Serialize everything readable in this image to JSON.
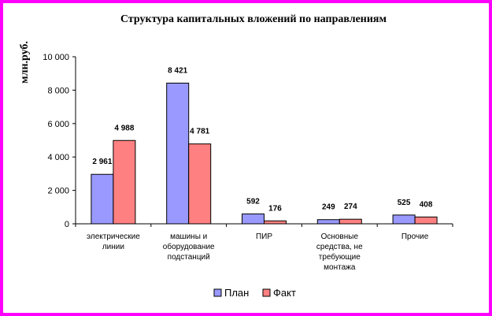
{
  "chart_data": {
    "type": "bar",
    "title": "Структура капитальных вложений по направлениям",
    "ylabel": "млн.руб.",
    "xlabel": "",
    "ylim": [
      0,
      10000
    ],
    "yticks": [
      0,
      2000,
      4000,
      6000,
      8000,
      10000
    ],
    "ytick_labels": [
      "0",
      "2 000",
      "4 000",
      "6 000",
      "8 000",
      "10 000"
    ],
    "categories": [
      [
        "электрические",
        "линии"
      ],
      [
        "машины и",
        "оборудование",
        "подстанций"
      ],
      [
        "ПИР"
      ],
      [
        "Основные",
        "средства, не",
        "требующие",
        "монтажа"
      ],
      [
        "Прочие"
      ]
    ],
    "series": [
      {
        "name": "План",
        "color": "#9999ff",
        "values": [
          2961,
          8421,
          592,
          249,
          525
        ],
        "labels": [
          "2 961",
          "8 421",
          "592",
          "249",
          "525"
        ]
      },
      {
        "name": "Факт",
        "color": "#ff8080",
        "values": [
          4988,
          4781,
          176,
          274,
          408
        ],
        "labels": [
          "4 988",
          "4 781",
          "176",
          "274",
          "408"
        ]
      }
    ],
    "grid": false,
    "legend_position": "bottom",
    "border_color": "#ff00ff"
  }
}
